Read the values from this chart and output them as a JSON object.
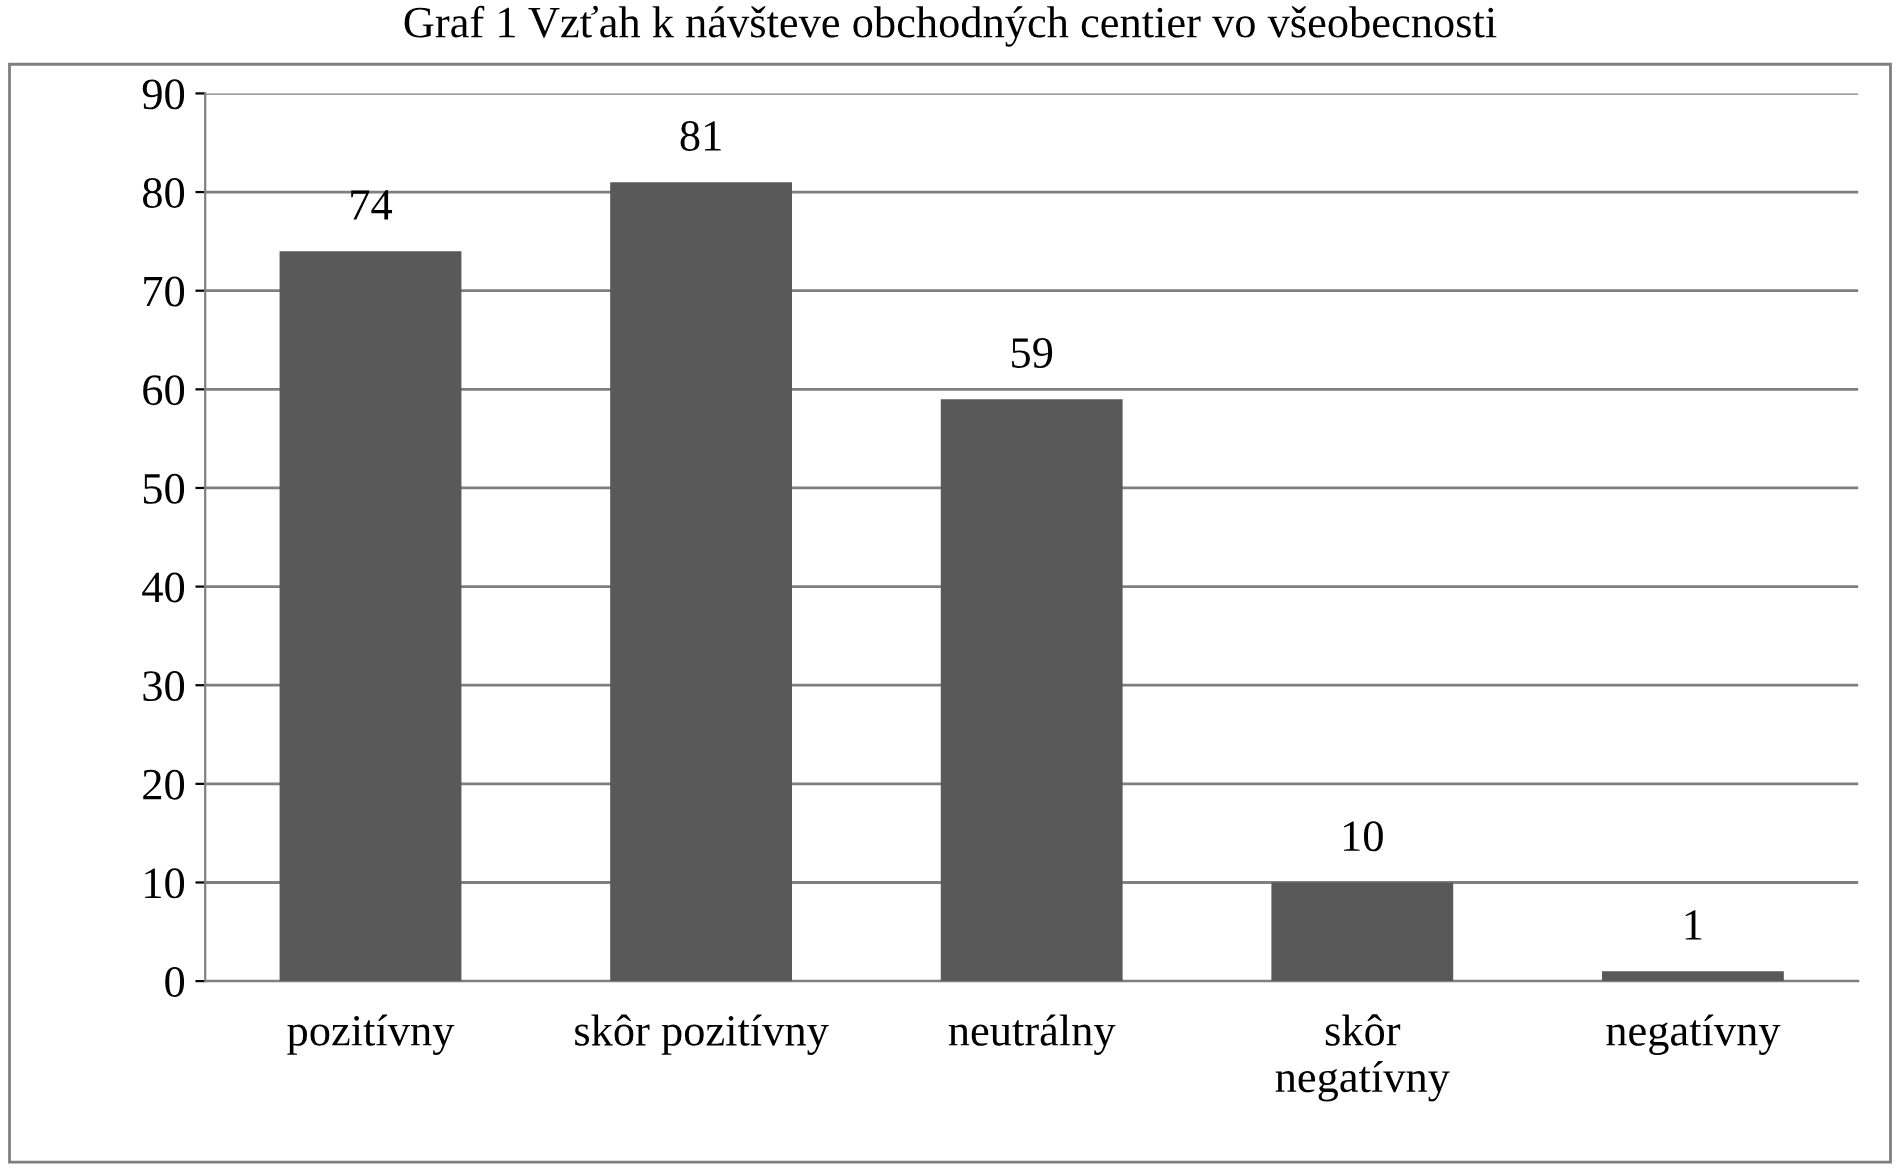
{
  "chart_data": {
    "type": "bar",
    "title": "Graf 1 Vzťah k návšteve obchodných centier vo všeobecnosti",
    "categories": [
      "pozitívny",
      "skôr pozitívny",
      "neutrálny",
      "skôr\nnegatívny",
      "negatívny"
    ],
    "values": [
      74,
      81,
      59,
      10,
      1
    ],
    "color": "#595959",
    "ylim": [
      0,
      90
    ],
    "yticks": [
      0,
      10,
      20,
      30,
      40,
      50,
      60,
      70,
      80,
      90
    ],
    "grid": "y",
    "data_labels": true,
    "legend": false
  }
}
